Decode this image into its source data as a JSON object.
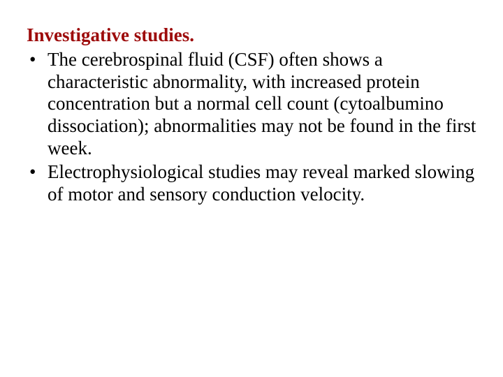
{
  "slide": {
    "heading": "Investigative studies.",
    "heading_color": "#9d0b0b",
    "body_color": "#000000",
    "font_family": "Times New Roman",
    "font_size_pt": 20,
    "background_color": "#ffffff",
    "bullets": [
      "The cerebrospinal fluid (CSF) often shows a characteristic abnormality, with increased protein concentration but a normal cell count (cytoalbumino dissociation); abnormalities may not be found in the first week.",
      "Electrophysiological studies may reveal marked slowing of motor and sensory conduction velocity."
    ]
  }
}
